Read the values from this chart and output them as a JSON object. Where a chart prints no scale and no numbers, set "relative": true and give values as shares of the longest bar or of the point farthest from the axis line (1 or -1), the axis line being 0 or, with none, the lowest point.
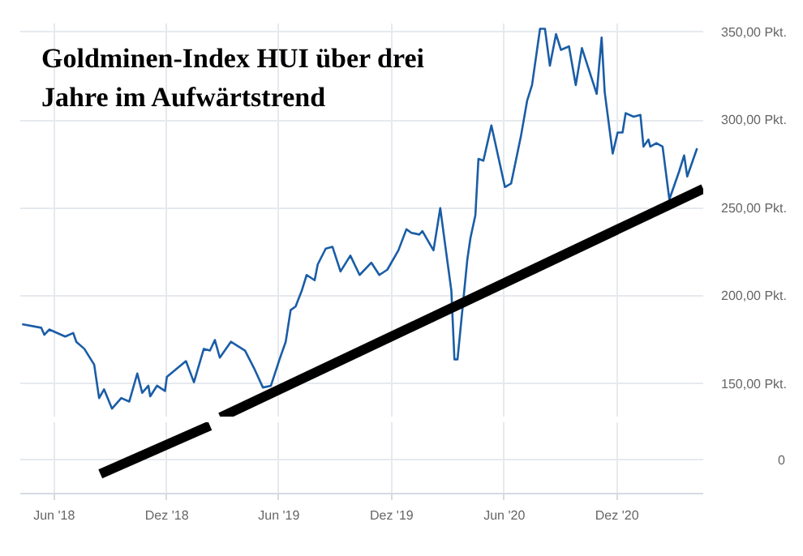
{
  "chart_data": [
    {
      "type": "line",
      "title": "Goldminen-Index HUI über drei Jahre im Aufwärtstrend",
      "x": [
        "2018-04-10",
        "2018-05-11",
        "2018-05-16",
        "2018-05-24",
        "2018-06-19",
        "2018-07-02",
        "2018-07-07",
        "2018-07-20",
        "2018-08-05",
        "2018-08-13",
        "2018-08-21",
        "2018-09-03",
        "2018-09-18",
        "2018-10-01",
        "2018-10-14",
        "2018-10-22",
        "2018-11-01",
        "2018-11-04",
        "2018-11-15",
        "2018-11-28",
        "2018-12-01",
        "2019-01-01",
        "2019-01-14",
        "2019-01-30",
        "2019-02-09",
        "2019-02-17",
        "2019-02-25",
        "2019-03-15",
        "2019-04-07",
        "2019-04-23",
        "2019-05-06",
        "2019-05-19",
        "2019-06-02",
        "2019-06-12",
        "2019-06-20",
        "2019-06-28",
        "2019-07-08",
        "2019-07-16",
        "2019-07-29",
        "2019-08-03",
        "2019-08-16",
        "2019-08-27",
        "2019-09-09",
        "2019-09-25",
        "2019-10-10",
        "2019-10-29",
        "2019-11-11",
        "2019-11-24",
        "2019-12-12",
        "2019-12-25",
        "2020-01-02",
        "2020-01-15",
        "2020-01-20",
        "2020-02-02",
        "2020-02-07",
        "2020-02-18",
        "2020-02-26",
        "2020-03-07",
        "2020-03-12",
        "2020-03-17",
        "2020-04-02",
        "2020-04-07",
        "2020-04-15",
        "2020-04-20",
        "2020-04-28",
        "2020-05-11",
        "2020-06-02",
        "2020-06-12",
        "2020-06-28",
        "2020-07-08",
        "2020-07-16",
        "2020-07-29",
        "2020-08-06",
        "2020-08-14",
        "2020-08-24",
        "2020-09-01",
        "2020-09-14",
        "2020-09-25",
        "2020-10-05",
        "2020-10-29",
        "2020-11-06",
        "2020-11-11",
        "2020-11-24",
        "2020-12-02",
        "2020-12-10",
        "2020-12-15",
        "2020-12-28",
        "2021-01-08",
        "2021-01-13",
        "2021-01-21",
        "2021-01-24",
        "2021-02-03",
        "2021-02-13",
        "2021-02-24",
        "2021-03-12",
        "2021-03-20",
        "2021-03-25",
        "2021-04-10"
      ],
      "series": [
        {
          "color": "#1a5da6",
          "values": [
            184,
            182,
            178,
            181,
            177,
            179,
            174,
            170,
            161,
            142,
            147,
            136,
            142,
            140,
            156,
            145,
            149,
            143,
            149,
            146,
            154,
            163,
            151,
            170,
            169,
            175,
            165,
            174,
            169,
            158,
            148,
            149,
            164,
            174,
            192,
            194,
            203,
            212,
            209,
            218,
            227,
            228,
            214,
            223,
            212,
            219,
            212,
            215,
            226,
            238,
            236,
            235,
            237,
            229,
            226,
            250,
            229,
            203,
            164,
            164,
            221,
            233,
            246,
            278,
            277,
            297,
            262,
            264,
            291,
            311,
            320,
            352,
            352,
            331,
            349,
            340,
            342,
            320,
            341,
            315,
            347,
            316,
            281,
            293,
            293,
            304,
            302,
            303,
            285,
            289,
            285,
            287,
            285,
            255,
            271,
            280,
            268,
            284
          ]
        },
        {
          "type": "line",
          "color": "#000000",
          "x": [
            "2019-02-26",
            "2021-04-20"
          ],
          "values": [
            131,
            261
          ]
        }
      ],
      "xlim": [
        "2018-04-07",
        "2021-04-20"
      ],
      "xticks": [
        {
          "value": "2018-06-01",
          "label": null
        },
        {
          "value": "2018-12-01",
          "label": null
        },
        {
          "value": "2019-06-01",
          "label": null
        },
        {
          "value": "2019-12-01",
          "label": null
        },
        {
          "value": "2020-06-01",
          "label": null
        },
        {
          "value": "2020-12-01",
          "label": null
        }
      ],
      "ylim": [
        131,
        355
      ],
      "yticks": [
        {
          "value": 150,
          "label": "150,00 Pkt."
        },
        {
          "value": 200,
          "label": "200,00 Pkt."
        },
        {
          "value": 250,
          "label": "250,00 Pkt."
        },
        {
          "value": 300,
          "label": "300,00 Pkt."
        },
        {
          "value": 350,
          "label": "350,00 Pkt."
        }
      ],
      "grid": true,
      "tick_labels": "y"
    },
    {
      "type": "line",
      "series": [
        {
          "color": "#000000",
          "x": [
            "2018-08-15",
            "2019-02-09"
          ],
          "values": [
            -0.42,
            1
          ]
        }
      ],
      "xlim": [
        "2018-04-07",
        "2021-04-20"
      ],
      "xticks": [
        {
          "value": "2018-06-01",
          "label": "Jun '18"
        },
        {
          "value": "2018-12-01",
          "label": "Dez '18"
        },
        {
          "value": "2019-06-01",
          "label": "Jun '19"
        },
        {
          "value": "2019-12-01",
          "label": "Dez '19"
        },
        {
          "value": "2020-06-01",
          "label": "Jun '20"
        },
        {
          "value": "2020-12-01",
          "label": "Dez '20"
        }
      ],
      "relative": true,
      "annotations": [
        "0"
      ],
      "grid": true
    }
  ]
}
